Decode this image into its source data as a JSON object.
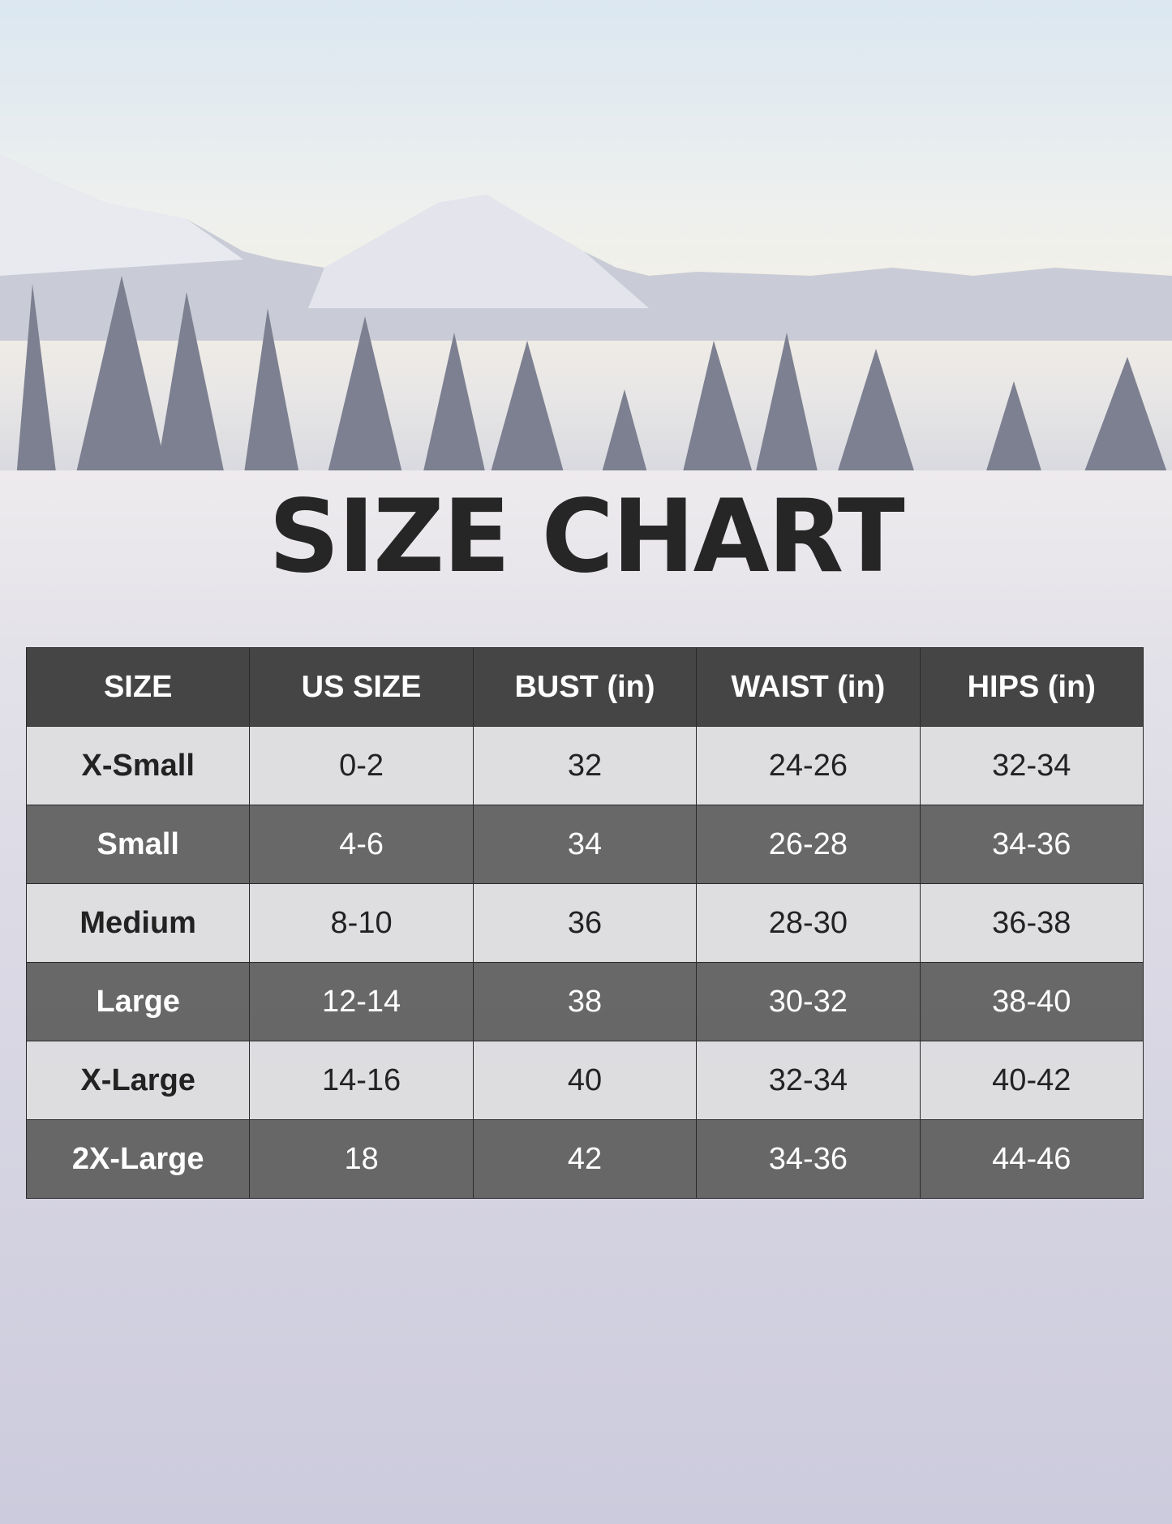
{
  "title": "SIZE CHART",
  "table": {
    "headers": [
      "SIZE",
      "US SIZE",
      "BUST (in)",
      "WAIST (in)",
      "HIPS (in)"
    ],
    "rows": [
      [
        "X-Small",
        "0-2",
        "32",
        "24-26",
        "32-34"
      ],
      [
        "Small",
        "4-6",
        "34",
        "26-28",
        "34-36"
      ],
      [
        "Medium",
        "8-10",
        "36",
        "28-30",
        "36-38"
      ],
      [
        "Large",
        "12-14",
        "38",
        "30-32",
        "38-40"
      ],
      [
        "X-Large",
        "14-16",
        "40",
        "32-34",
        "40-42"
      ],
      [
        "2X-Large",
        "18",
        "42",
        "34-36",
        "44-46"
      ]
    ]
  },
  "colors": {
    "header_bg": "#3c3c3c",
    "dark_row": "#5f5f5f",
    "light_row": "#dedee0",
    "title": "#262626"
  }
}
